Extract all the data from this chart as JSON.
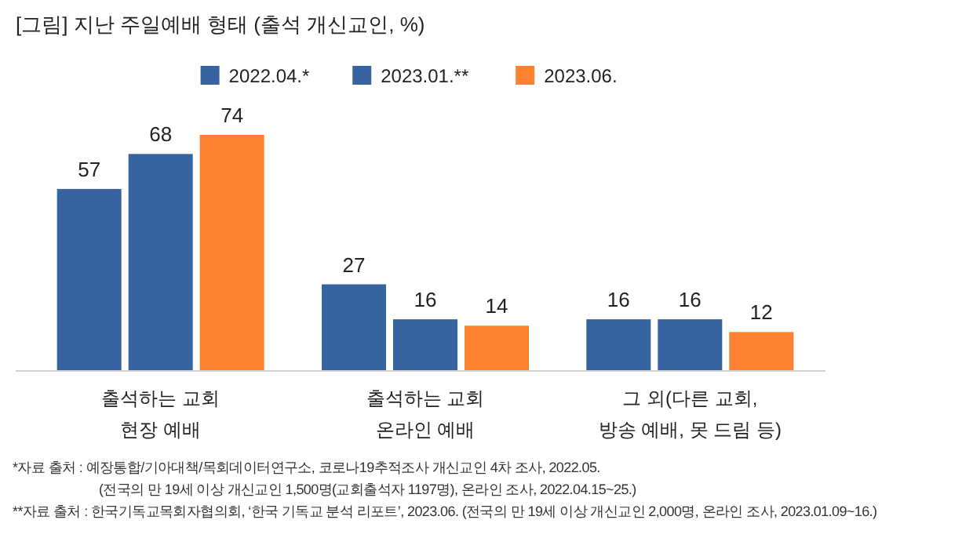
{
  "chart_data": {
    "type": "bar",
    "title": "[그림] 지난 주일예배 형태 (출석 개신교인, %)",
    "categories": [
      "출석하는 교회\n현장 예배",
      "출석하는 교회\n온라인 예배",
      "그 외(다른 교회,\n방송 예배, 못 드림 등)"
    ],
    "series": [
      {
        "name": "2022.04.*",
        "color": "#3764a0",
        "values": [
          57,
          27,
          16
        ]
      },
      {
        "name": "2023.01.**",
        "color": "#3764a0",
        "values": [
          68,
          16,
          16
        ]
      },
      {
        "name": "2023.06.",
        "color": "#fe8131",
        "values": [
          74,
          14,
          12
        ]
      }
    ],
    "data_labels": true,
    "legend": "top",
    "annotations": [
      "*자료 출처 : 예장통합/기아대책/목회데이터연구소, 코로나19추적조사 개신교인 4차 조사, 2022.05.",
      "(전국의 만 19세 이상 개신교인 1,500명(교회출석자 1197명), 온라인 조사, 2022.04.15~25.)",
      "**자료 출처 : 한국기독교목회자협의회, ‘한국 기독교 분석 리포트’, 2023.06. (전국의 만 19세 이상 개신교인 2,000명, 온라인 조사, 2023.01.09~16.)"
    ]
  }
}
